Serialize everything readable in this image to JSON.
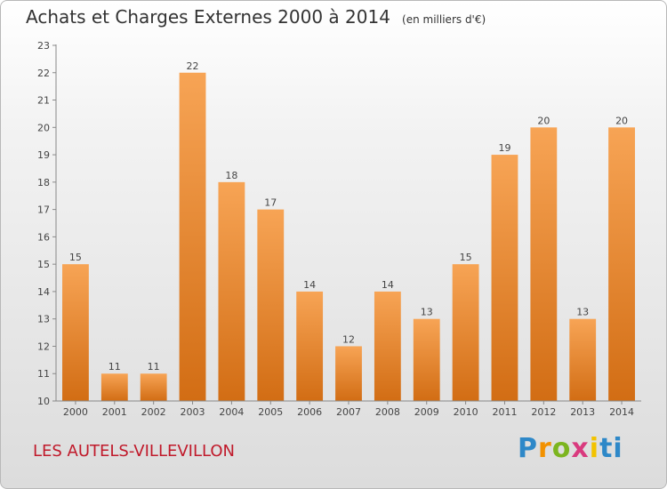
{
  "chart_data": {
    "type": "bar",
    "title": "Achats et Charges Externes 2000 à 2014",
    "subtitle": "(en milliers d'€)",
    "categories": [
      "2000",
      "2001",
      "2002",
      "2003",
      "2004",
      "2005",
      "2006",
      "2007",
      "2008",
      "2009",
      "2010",
      "2011",
      "2012",
      "2013",
      "2014"
    ],
    "values": [
      15,
      11,
      11,
      22,
      18,
      17,
      14,
      12,
      14,
      13,
      15,
      19,
      20,
      13,
      20
    ],
    "ylim": [
      10,
      23
    ],
    "yticks": [
      10,
      11,
      12,
      13,
      14,
      15,
      16,
      17,
      18,
      19,
      20,
      21,
      22,
      23
    ],
    "grid": false,
    "legend": "none",
    "bar_color": "#f28e2b"
  },
  "footer": {
    "commune": "LES AUTELS-VILLEVILLON",
    "logo": "Proxiti"
  }
}
